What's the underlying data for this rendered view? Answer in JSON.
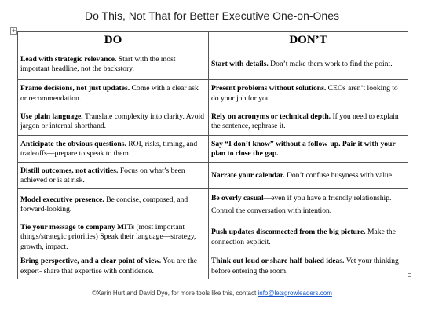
{
  "header": {
    "title": "Do This, Not That for Better Executive One-on-Ones"
  },
  "table": {
    "columns": [
      "DO",
      "DON’T"
    ],
    "rows": [
      [
        {
          "bold": "Lead with strategic relevance.",
          "text": "Start with the most important headline, not the backstory."
        },
        {
          "bold": "Start with details.",
          "text": "Don’t make them work to find the point."
        }
      ],
      [
        {
          "bold": "Frame decisions, not just updates.",
          "text": "Come with a clear ask or recommendation."
        },
        {
          "bold": "Present problems without solutions.",
          "text": "CEOs aren’t looking to do your job for you."
        }
      ],
      [
        {
          "bold": "Use plain language.",
          "text": "Translate complexity into clarity. Avoid jargon or internal shorthand."
        },
        {
          "bold": "Rely on acronyms or technical depth.",
          "text": "If you need to explain the sentence, rephrase it."
        }
      ],
      [
        {
          "bold": "Anticipate the obvious questions.",
          "text": "ROI, risks, timing, and tradeoffs—prepare to speak to them."
        },
        {
          "bold": "Say “I don’t know” without a follow-up. Pair it with your plan to close the gap."
        }
      ],
      [
        {
          "bold": "Distill outcomes, not activities.",
          "text": "Focus on what’s been achieved or is at risk."
        },
        {
          "bold": "Narrate your calendar.",
          "text": "Don’t confuse busyness with value."
        }
      ],
      [
        {
          "bold": "Model executive presence.",
          "text": "Be concise, composed, and forward-looking."
        },
        {
          "bold": "Be overly casual",
          "text": "—even if you have a friendly relationship.",
          "text2": "Control the conversation with intention."
        }
      ],
      [
        {
          "bold": "Tie your message to company MITs",
          "text": "(most important things/strategic priorities) Speak their language—strategy, growth, impact."
        },
        {
          "bold": "Push updates disconnected from the big picture.",
          "text": "Make the connection explicit."
        }
      ],
      [
        {
          "bold": "Bring perspective, and a clear point of view.",
          "text": "You are the expert- share that expertise with confidence."
        },
        {
          "bold": "Think out loud or share half-baked ideas.",
          "text": "Vet your thinking before entering the room."
        }
      ]
    ]
  },
  "footer": {
    "text": "©Xarin Hurt and David Dye, for more tools like this, contact",
    "email": "info@letsgrowleaders.com"
  }
}
